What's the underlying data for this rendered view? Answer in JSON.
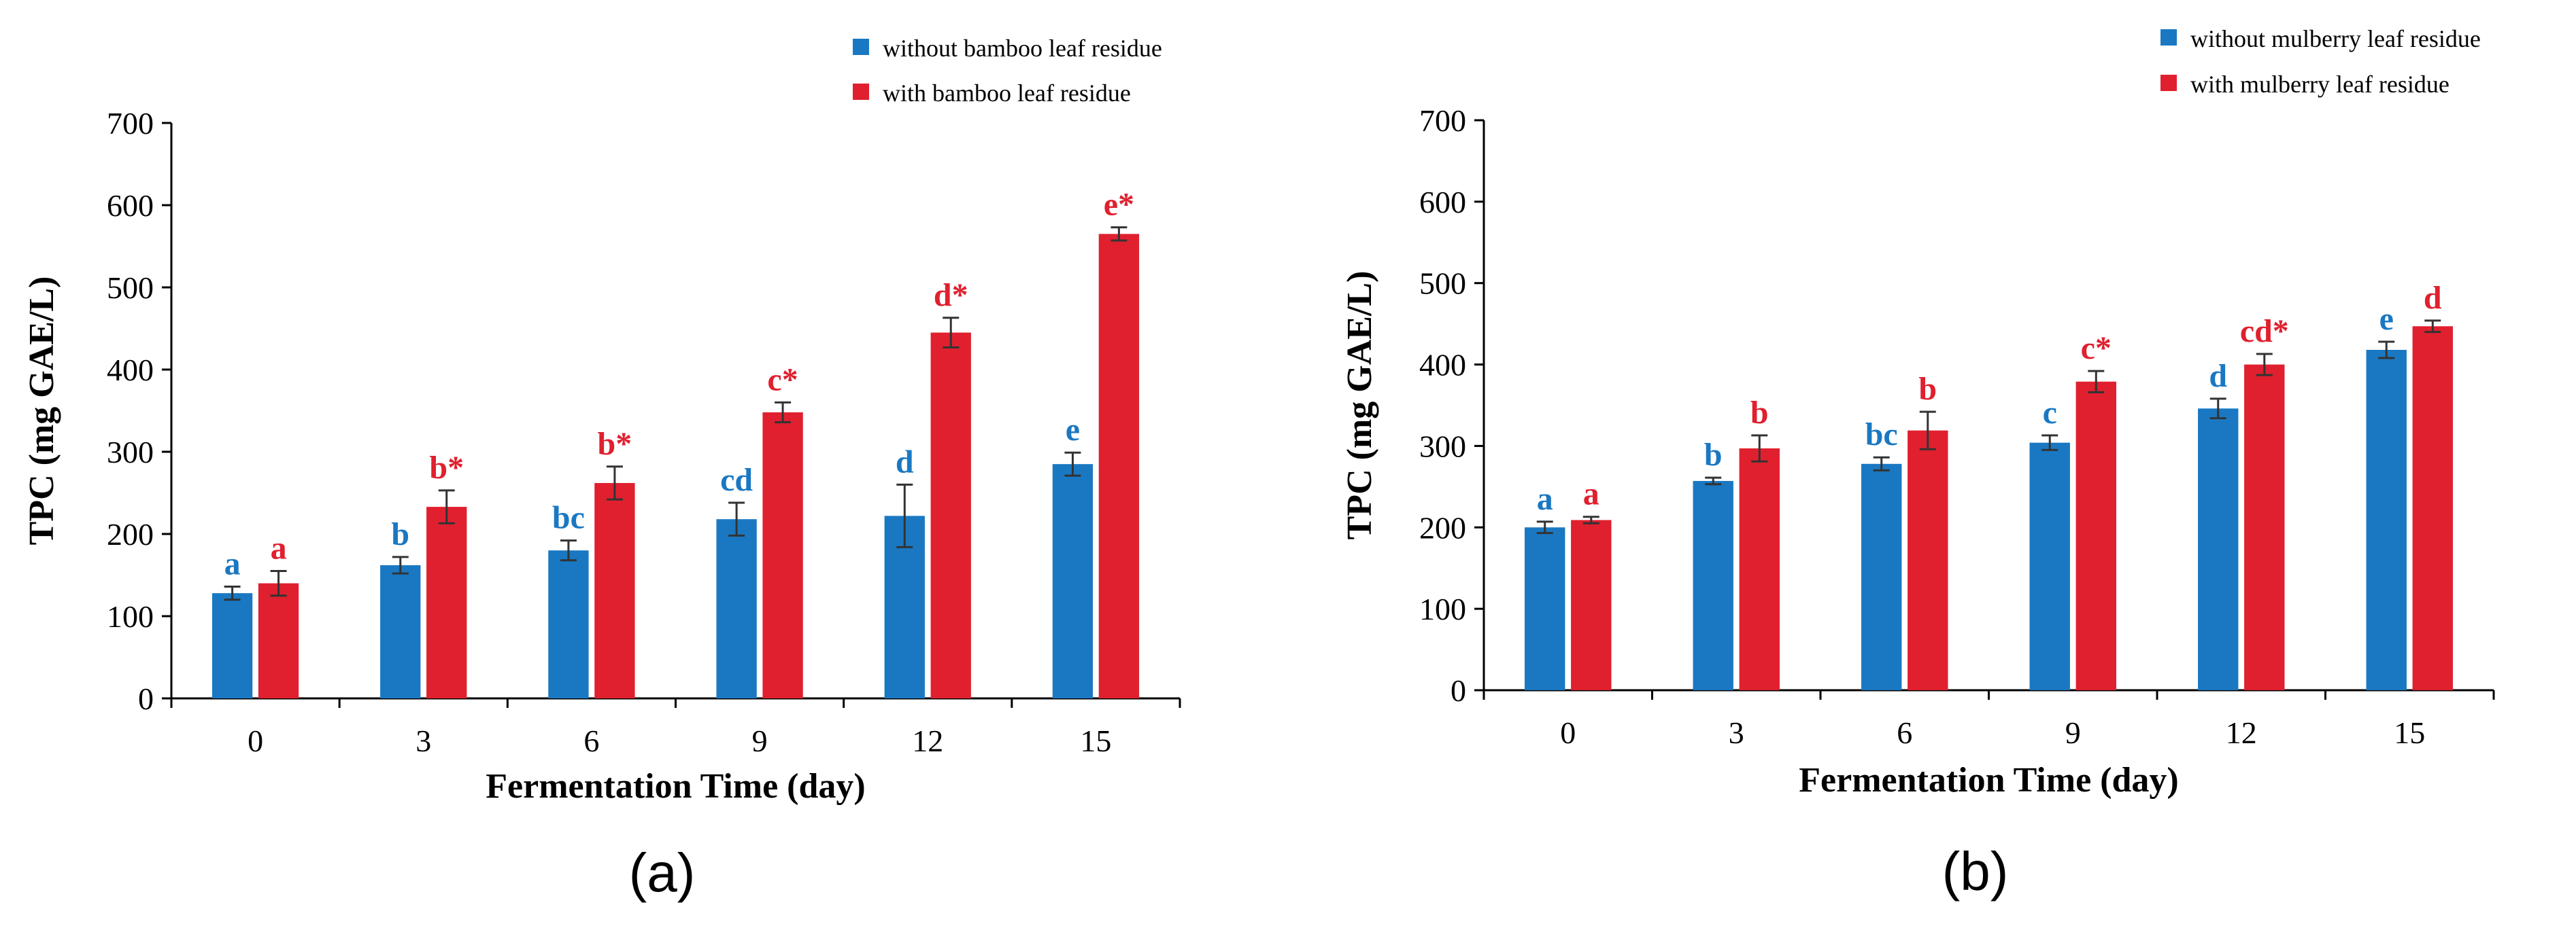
{
  "colors": {
    "series1": "#1a78c2",
    "series2": "#e0202f",
    "axis": "#000000",
    "error_bar": "#333333"
  },
  "chart_data": [
    {
      "panel": "a",
      "type": "bar",
      "caption": "(a)",
      "xlabel": "Fermentation Time (day)",
      "ylabel": "TPC (mg GAE/L)",
      "ylim": [
        0,
        700
      ],
      "yticks": [
        "0",
        "100",
        "200",
        "300",
        "400",
        "500",
        "600",
        "700"
      ],
      "categories": [
        "0",
        "3",
        "6",
        "9",
        "12",
        "15"
      ],
      "legend_position": "top-right",
      "series": [
        {
          "name": "without bamboo leaf residue",
          "values": [
            128,
            162,
            180,
            218,
            222,
            285
          ],
          "errors": [
            8,
            10,
            12,
            20,
            38,
            14
          ],
          "labels": [
            "a",
            "b",
            "bc",
            "cd",
            "d",
            "e"
          ]
        },
        {
          "name": "with bamboo leaf residue",
          "values": [
            140,
            233,
            262,
            348,
            445,
            565
          ],
          "errors": [
            15,
            20,
            20,
            12,
            18,
            8
          ],
          "labels": [
            "a",
            "b*",
            "b*",
            "c*",
            "d*",
            "e*"
          ]
        }
      ]
    },
    {
      "panel": "b",
      "type": "bar",
      "caption": "(b)",
      "xlabel": "Fermentation Time (day)",
      "ylabel": "TPC (mg GAE/L)",
      "ylim": [
        0,
        700
      ],
      "yticks": [
        "0",
        "100",
        "200",
        "300",
        "400",
        "500",
        "600",
        "700"
      ],
      "categories": [
        "0",
        "3",
        "6",
        "9",
        "12",
        "15"
      ],
      "legend_position": "top-right",
      "series": [
        {
          "name": "without mulberry leaf residue",
          "values": [
            200,
            257,
            278,
            304,
            346,
            418
          ],
          "errors": [
            7,
            4,
            8,
            9,
            12,
            10
          ],
          "labels": [
            "a",
            "b",
            "bc",
            "c",
            "d",
            "e"
          ]
        },
        {
          "name": "with mulberry leaf residue",
          "values": [
            209,
            297,
            319,
            379,
            400,
            447
          ],
          "errors": [
            4,
            16,
            23,
            13,
            13,
            7
          ],
          "labels": [
            "a",
            "b",
            "b",
            "c*",
            "cd*",
            "d"
          ]
        }
      ]
    }
  ]
}
